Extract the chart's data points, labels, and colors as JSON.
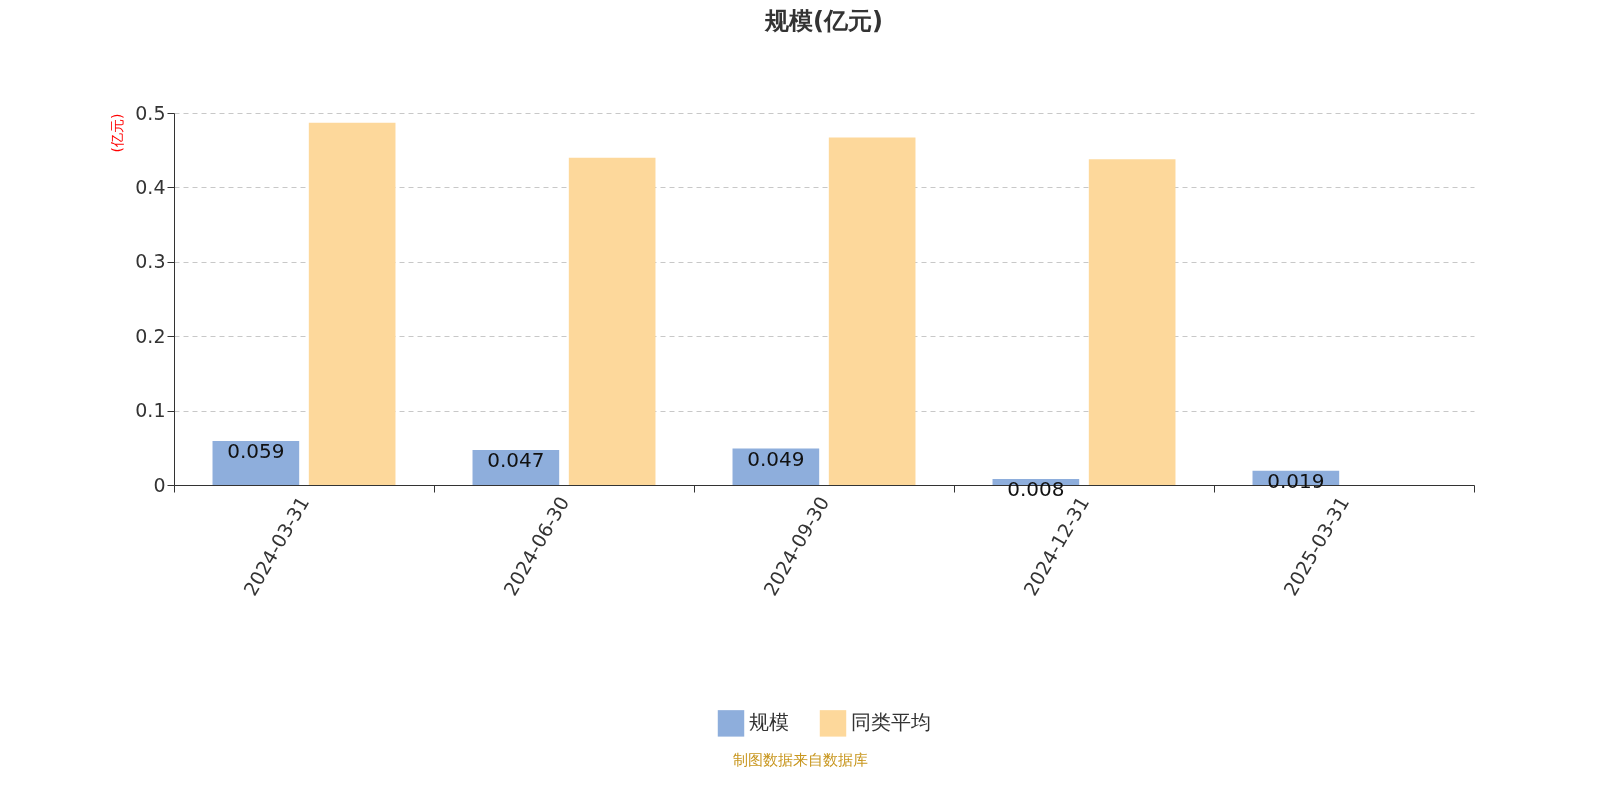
{
  "chart_data": {
    "type": "bar",
    "title": "规模(亿元)",
    "ylabel": "(亿元)",
    "categories": [
      "2024-03-31",
      "2024-06-30",
      "2024-09-30",
      "2024-12-31",
      "2025-03-31"
    ],
    "series": [
      {
        "name": "规模",
        "color": "#8eaedc",
        "values": [
          0.059,
          0.047,
          0.049,
          0.008,
          0.019
        ],
        "value_labels": [
          "0.059",
          "0.047",
          "0.049",
          "0.008",
          "0.019"
        ]
      },
      {
        "name": "同类平均",
        "color": "#fdd89b",
        "values": [
          0.487,
          0.44,
          0.467,
          0.438,
          null
        ]
      }
    ],
    "ylim": [
      0,
      0.5
    ],
    "yticks": [
      0,
      0.1,
      0.2,
      0.3,
      0.4,
      0.5
    ],
    "grid": "y",
    "legend": "bottom",
    "annotations": [
      "制图数据来自数据库"
    ]
  }
}
